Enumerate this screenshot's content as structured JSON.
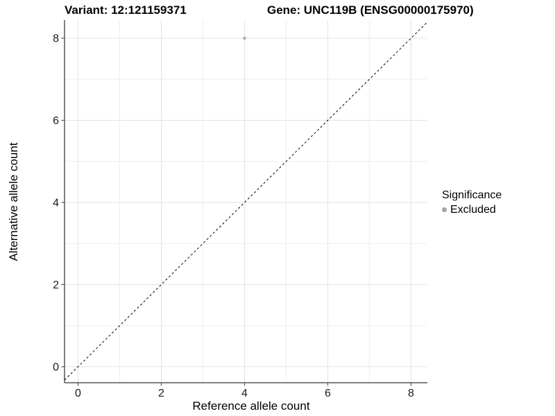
{
  "header": {
    "variant_title": "Variant: 12:121159371",
    "gene_title": "Gene: UNC119B (ENSG00000175970)"
  },
  "chart_data": {
    "type": "scatter",
    "title": "Variant: 12:121159371 / Gene: UNC119B (ENSG00000175970)",
    "xlabel": "Reference allele count",
    "ylabel": "Alternative allele count",
    "xlim": [
      -0.325,
      8.375
    ],
    "ylim": [
      -0.39,
      8.44
    ],
    "xticks": [
      0,
      2,
      4,
      6,
      8
    ],
    "yticks": [
      0,
      2,
      4,
      6,
      8
    ],
    "xminor": [
      1,
      3,
      5,
      7
    ],
    "yminor": [
      1,
      3,
      5,
      7
    ],
    "grid": "major and minor, light gray on white",
    "points": [
      {
        "x": 4,
        "y": 8,
        "significance": "Excluded"
      }
    ],
    "reference_line": {
      "kind": "identity y=x",
      "style": "dashed",
      "color": "#000000"
    },
    "legend": {
      "title": "Significance",
      "position": "right",
      "entries": [
        {
          "label": "Excluded",
          "color": "#b3b3b3",
          "marker": "circle"
        }
      ]
    },
    "colors": {
      "background": "#ffffff",
      "gridline_major": "#e3e3e3",
      "gridline_minor": "#eeeeee",
      "axis_line": "#555555",
      "point": "#b3b3b3",
      "legend_dot": "#a3a3a3"
    }
  }
}
